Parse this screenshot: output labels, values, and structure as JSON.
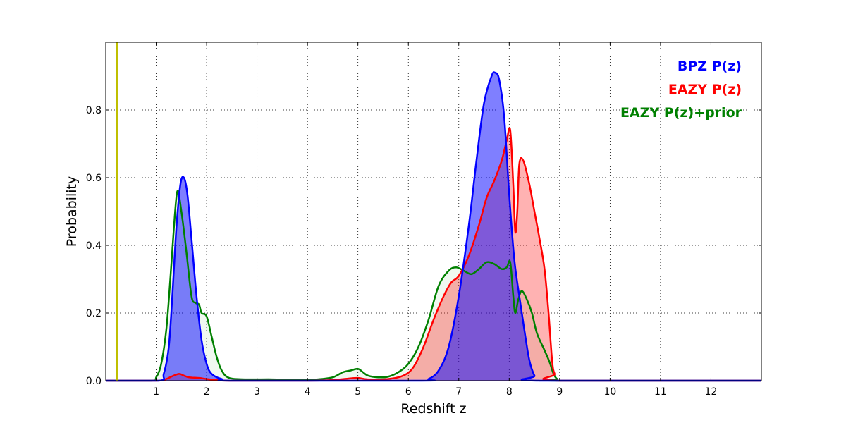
{
  "chart_data": {
    "type": "area",
    "xlabel": "Redshift z",
    "ylabel": "Probability",
    "xlim": [
      0,
      13
    ],
    "ylim": [
      0,
      1.0
    ],
    "x_ticks": [
      1,
      2,
      3,
      4,
      5,
      6,
      7,
      8,
      9,
      10,
      11,
      12
    ],
    "y_ticks": [
      0.0,
      0.2,
      0.4,
      0.6,
      0.8
    ],
    "x_tick_labels": [
      "1",
      "2",
      "3",
      "4",
      "5",
      "6",
      "7",
      "8",
      "9",
      "10",
      "11",
      "12"
    ],
    "y_tick_labels": [
      "0.0",
      "0.2",
      "0.4",
      "0.6",
      "0.8"
    ],
    "grid": true,
    "legend_position": "top-right",
    "marker_line": {
      "x": 0.22,
      "color": "#bfbf00"
    },
    "series": [
      {
        "name": "BPZ P(z)",
        "color": "#0000ff",
        "fill": "#0000ff",
        "fill_opacity": 0.5,
        "points": [
          [
            0,
            0
          ],
          [
            1.05,
            0
          ],
          [
            1.15,
            0.02
          ],
          [
            1.25,
            0.1
          ],
          [
            1.32,
            0.25
          ],
          [
            1.4,
            0.45
          ],
          [
            1.48,
            0.58
          ],
          [
            1.55,
            0.6
          ],
          [
            1.62,
            0.55
          ],
          [
            1.7,
            0.42
          ],
          [
            1.8,
            0.25
          ],
          [
            1.9,
            0.12
          ],
          [
            2.0,
            0.05
          ],
          [
            2.1,
            0.02
          ],
          [
            2.3,
            0.005
          ],
          [
            2.6,
            0
          ],
          [
            6.2,
            0
          ],
          [
            6.4,
            0.005
          ],
          [
            6.6,
            0.03
          ],
          [
            6.8,
            0.1
          ],
          [
            7.0,
            0.25
          ],
          [
            7.2,
            0.46
          ],
          [
            7.35,
            0.65
          ],
          [
            7.5,
            0.82
          ],
          [
            7.65,
            0.9
          ],
          [
            7.72,
            0.91
          ],
          [
            7.8,
            0.89
          ],
          [
            7.9,
            0.78
          ],
          [
            8.0,
            0.55
          ],
          [
            8.1,
            0.36
          ],
          [
            8.2,
            0.25
          ],
          [
            8.3,
            0.15
          ],
          [
            8.4,
            0.06
          ],
          [
            8.5,
            0.015
          ],
          [
            8.6,
            0
          ],
          [
            13,
            0
          ]
        ]
      },
      {
        "name": "EAZY P(z)",
        "color": "#ff0000",
        "fill": "#ff0000",
        "fill_opacity": 0.3,
        "points": [
          [
            0,
            0
          ],
          [
            1.0,
            0
          ],
          [
            1.2,
            0.005
          ],
          [
            1.3,
            0.012
          ],
          [
            1.45,
            0.02
          ],
          [
            1.55,
            0.015
          ],
          [
            1.65,
            0.01
          ],
          [
            1.85,
            0.008
          ],
          [
            2.0,
            0.005
          ],
          [
            2.2,
            0.002
          ],
          [
            2.5,
            0
          ],
          [
            4.0,
            0
          ],
          [
            4.5,
            0.002
          ],
          [
            4.8,
            0.006
          ],
          [
            5.0,
            0.008
          ],
          [
            5.2,
            0.004
          ],
          [
            5.6,
            0.005
          ],
          [
            5.9,
            0.015
          ],
          [
            6.1,
            0.04
          ],
          [
            6.3,
            0.1
          ],
          [
            6.5,
            0.18
          ],
          [
            6.7,
            0.25
          ],
          [
            6.85,
            0.29
          ],
          [
            7.0,
            0.31
          ],
          [
            7.2,
            0.37
          ],
          [
            7.4,
            0.46
          ],
          [
            7.55,
            0.54
          ],
          [
            7.7,
            0.59
          ],
          [
            7.85,
            0.65
          ],
          [
            7.95,
            0.71
          ],
          [
            8.02,
            0.74
          ],
          [
            8.08,
            0.58
          ],
          [
            8.12,
            0.44
          ],
          [
            8.16,
            0.5
          ],
          [
            8.2,
            0.64
          ],
          [
            8.28,
            0.65
          ],
          [
            8.4,
            0.58
          ],
          [
            8.5,
            0.5
          ],
          [
            8.6,
            0.42
          ],
          [
            8.7,
            0.33
          ],
          [
            8.78,
            0.2
          ],
          [
            8.85,
            0.06
          ],
          [
            8.9,
            0.02
          ],
          [
            9.0,
            0
          ],
          [
            13,
            0
          ]
        ]
      },
      {
        "name": "EAZY P(z)+prior",
        "color": "#008000",
        "fill": "#008000",
        "fill_opacity": 0.06,
        "points": [
          [
            0,
            0
          ],
          [
            0.9,
            0
          ],
          [
            1.0,
            0.01
          ],
          [
            1.1,
            0.05
          ],
          [
            1.2,
            0.15
          ],
          [
            1.28,
            0.3
          ],
          [
            1.35,
            0.45
          ],
          [
            1.42,
            0.56
          ],
          [
            1.5,
            0.5
          ],
          [
            1.6,
            0.38
          ],
          [
            1.7,
            0.25
          ],
          [
            1.78,
            0.23
          ],
          [
            1.85,
            0.225
          ],
          [
            1.9,
            0.2
          ],
          [
            2.0,
            0.19
          ],
          [
            2.1,
            0.13
          ],
          [
            2.2,
            0.07
          ],
          [
            2.3,
            0.03
          ],
          [
            2.45,
            0.008
          ],
          [
            2.8,
            0.004
          ],
          [
            3.3,
            0.004
          ],
          [
            3.8,
            0.002
          ],
          [
            4.2,
            0.004
          ],
          [
            4.5,
            0.01
          ],
          [
            4.7,
            0.025
          ],
          [
            4.85,
            0.03
          ],
          [
            5.0,
            0.035
          ],
          [
            5.1,
            0.025
          ],
          [
            5.2,
            0.015
          ],
          [
            5.4,
            0.01
          ],
          [
            5.6,
            0.012
          ],
          [
            5.8,
            0.025
          ],
          [
            6.0,
            0.05
          ],
          [
            6.2,
            0.1
          ],
          [
            6.4,
            0.18
          ],
          [
            6.6,
            0.28
          ],
          [
            6.8,
            0.325
          ],
          [
            6.95,
            0.335
          ],
          [
            7.1,
            0.325
          ],
          [
            7.25,
            0.315
          ],
          [
            7.4,
            0.33
          ],
          [
            7.55,
            0.35
          ],
          [
            7.7,
            0.345
          ],
          [
            7.85,
            0.33
          ],
          [
            7.95,
            0.335
          ],
          [
            8.02,
            0.35
          ],
          [
            8.08,
            0.25
          ],
          [
            8.12,
            0.2
          ],
          [
            8.18,
            0.24
          ],
          [
            8.25,
            0.265
          ],
          [
            8.35,
            0.24
          ],
          [
            8.45,
            0.2
          ],
          [
            8.55,
            0.14
          ],
          [
            8.7,
            0.09
          ],
          [
            8.8,
            0.055
          ],
          [
            8.88,
            0.02
          ],
          [
            8.95,
            0.005
          ],
          [
            9.05,
            0
          ],
          [
            13,
            0
          ]
        ]
      }
    ]
  }
}
